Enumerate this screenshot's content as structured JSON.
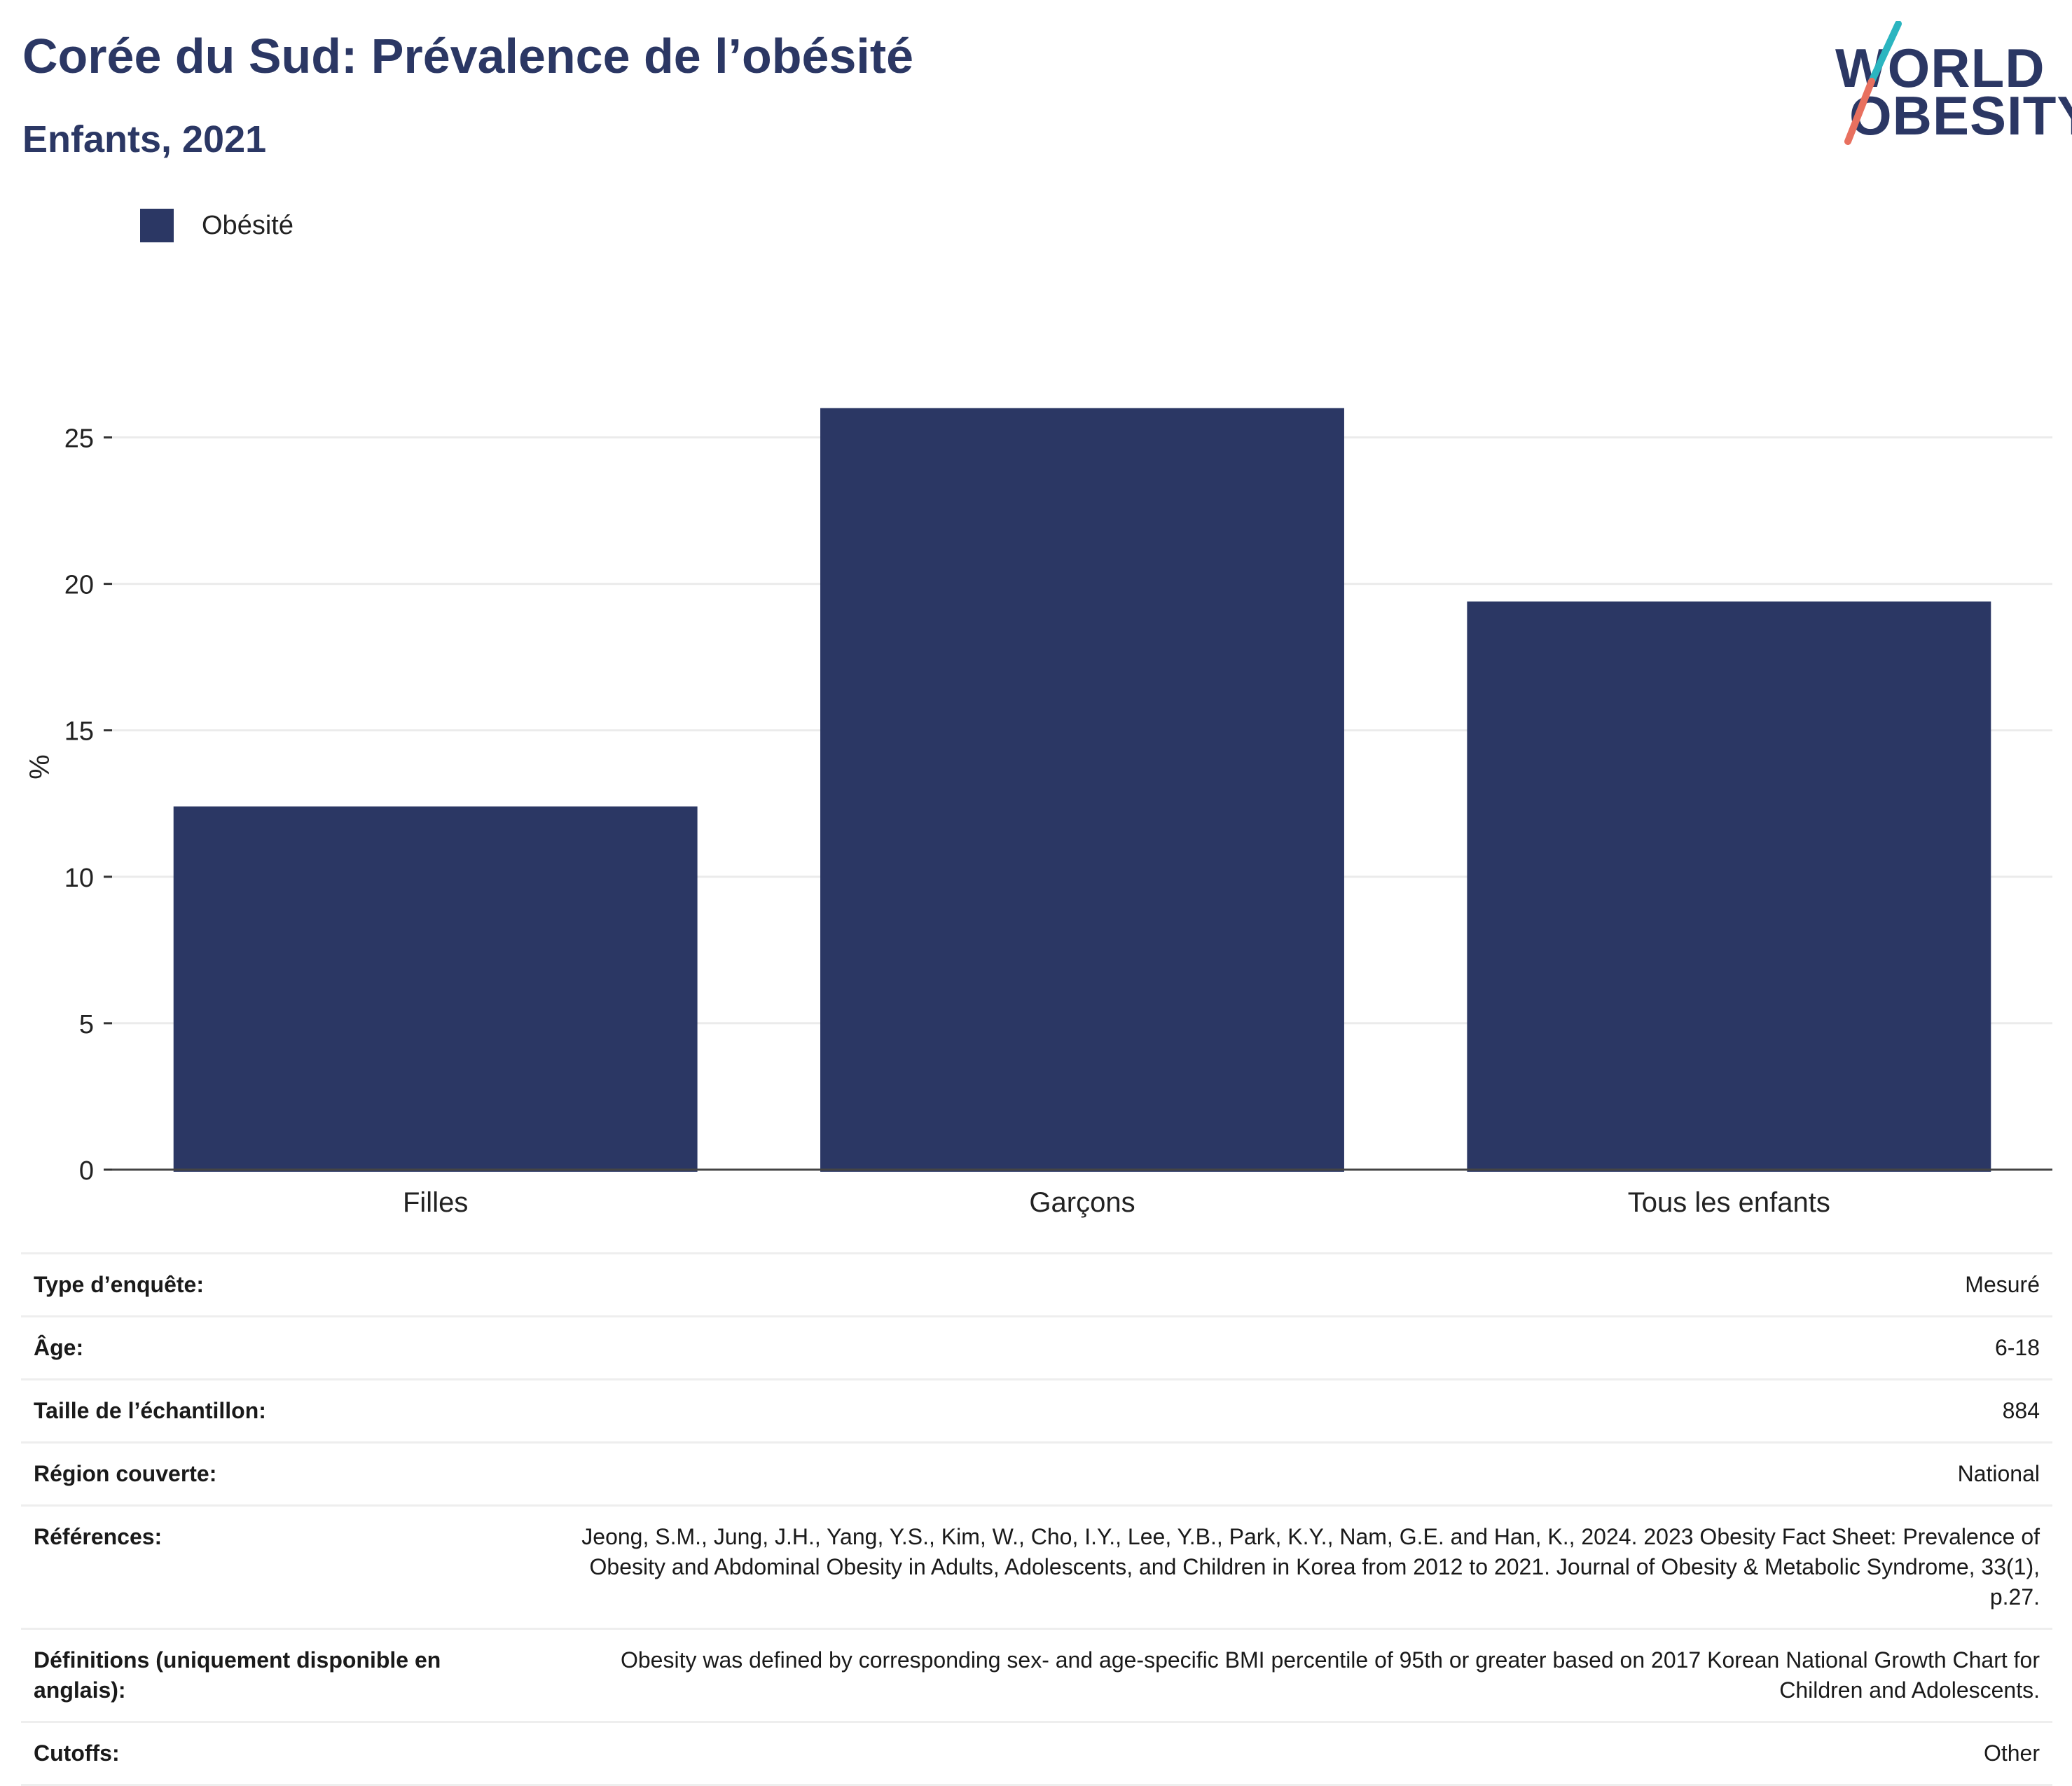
{
  "header": {
    "title": "Corée du Sud: Prévalence de l’obésité",
    "subtitle": "Enfants, 2021"
  },
  "logo": {
    "line1": "WORLD",
    "line2": "OBESITY",
    "colors": {
      "text": "#2b3764",
      "slash_top": "#2bb5c0",
      "slash_bottom": "#e8705f"
    }
  },
  "legend": {
    "label": "Obésité",
    "color": "#2b3764"
  },
  "chart_data": {
    "type": "bar",
    "categories": [
      "Filles",
      "Garçons",
      "Tous les enfants"
    ],
    "series": [
      {
        "name": "Obésité",
        "values": [
          12.4,
          26.0,
          19.4
        ],
        "color": "#2b3764"
      }
    ],
    "ylabel": "%",
    "xlabel": "",
    "ylim": [
      0,
      27.5
    ],
    "yticks": [
      0,
      5,
      10,
      15,
      20,
      25
    ],
    "grid": true,
    "legend_position": "top-left"
  },
  "info_table": [
    {
      "label": "Type d’enquête:",
      "value": "Mesuré"
    },
    {
      "label": "Âge:",
      "value": "6-18"
    },
    {
      "label": "Taille de l’échantillon:",
      "value": "884"
    },
    {
      "label": "Région couverte:",
      "value": "National"
    },
    {
      "label": "Références:",
      "value": "Jeong, S.M., Jung, J.H., Yang, Y.S., Kim, W., Cho, I.Y., Lee, Y.B., Park, K.Y., Nam, G.E. and Han, K., 2024. 2023 Obesity Fact Sheet: Prevalence of Obesity and Abdominal Obesity in Adults, Adolescents, and Children in Korea from 2012 to 2021. Journal of Obesity & Metabolic Syndrome, 33(1), p.27."
    },
    {
      "label": "Définitions (uniquement disponible en anglais):",
      "value": "Obesity was defined by corresponding sex- and age-specific BMI percentile of 95th or greater based on 2017 Korean National Growth Chart for Children and Adolescents."
    },
    {
      "label": "Cutoffs:",
      "value": "Other"
    }
  ]
}
